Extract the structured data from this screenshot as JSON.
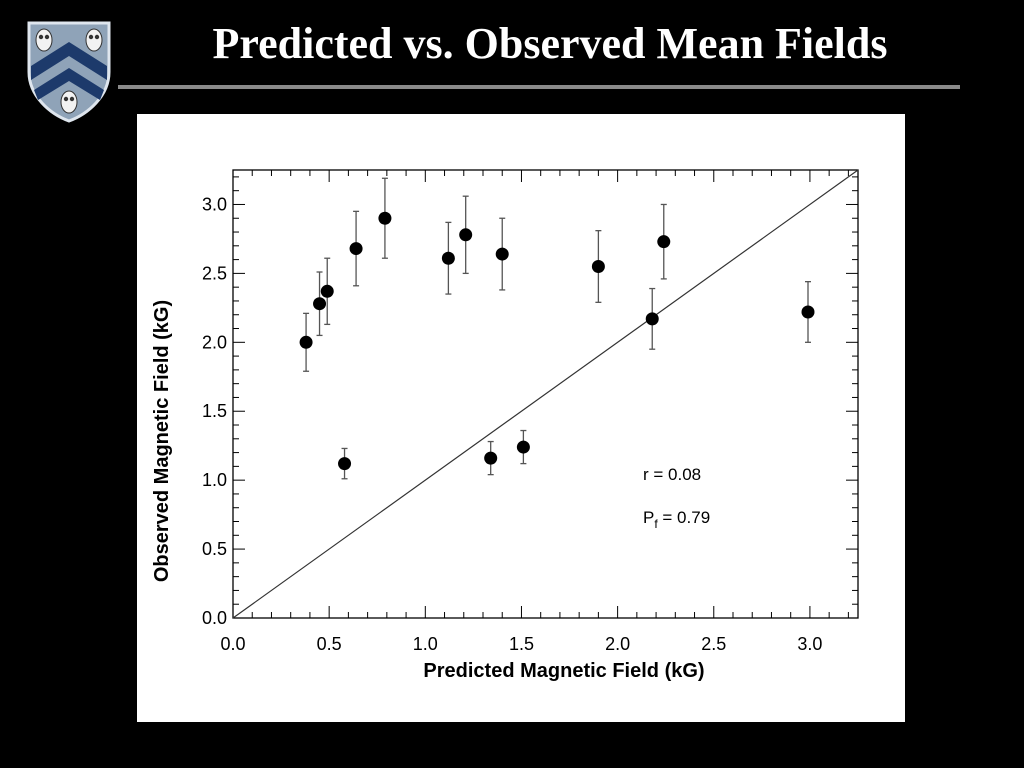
{
  "slide": {
    "title": "Predicted vs. Observed Mean Fields",
    "background": "#000000",
    "title_color": "#ffffff",
    "rule_color": "#8a8a8a"
  },
  "logo": {
    "icon": "university-shield-owls-icon",
    "shield_color": "#8fa3b8",
    "chevron_color": "#1d3a6b"
  },
  "chart_data": {
    "type": "scatter",
    "xlabel": "Predicted Magnetic Field (kG)",
    "ylabel": "Observed Magnetic Field (kG)",
    "xlim": [
      0,
      3.25
    ],
    "ylim": [
      0,
      3.25
    ],
    "xticks": [
      0,
      0.5,
      1.0,
      1.5,
      2.0,
      2.5,
      3.0
    ],
    "xtick_labels": [
      "0.0",
      "0.5",
      "1.0",
      "1.5",
      "2.0",
      "2.5",
      "3.0"
    ],
    "yticks": [
      0,
      0.5,
      1.0,
      1.5,
      2.0,
      2.5,
      3.0
    ],
    "ytick_labels": [
      "0.0",
      "0.5",
      "1.0",
      "1.5",
      "2.0",
      "2.5",
      "3.0"
    ],
    "grid": false,
    "reference_line": {
      "type": "identity",
      "from": [
        0,
        0
      ],
      "to": [
        3.25,
        3.25
      ]
    },
    "annotations": [
      {
        "text_main": "r = 0.08",
        "text_sub": ""
      },
      {
        "text_main": "P",
        "text_sub": "f",
        "text_tail": " = 0.79"
      }
    ],
    "points": [
      {
        "x": 0.38,
        "y": 2.0,
        "err": 0.21
      },
      {
        "x": 0.45,
        "y": 2.28,
        "err": 0.23
      },
      {
        "x": 0.49,
        "y": 2.37,
        "err": 0.24
      },
      {
        "x": 0.58,
        "y": 1.12,
        "err": 0.11
      },
      {
        "x": 0.64,
        "y": 2.68,
        "err": 0.27
      },
      {
        "x": 0.79,
        "y": 2.9,
        "err": 0.29
      },
      {
        "x": 1.12,
        "y": 2.61,
        "err": 0.26
      },
      {
        "x": 1.21,
        "y": 2.78,
        "err": 0.28
      },
      {
        "x": 1.34,
        "y": 1.16,
        "err": 0.12
      },
      {
        "x": 1.4,
        "y": 2.64,
        "err": 0.26
      },
      {
        "x": 1.51,
        "y": 1.24,
        "err": 0.12
      },
      {
        "x": 1.9,
        "y": 2.55,
        "err": 0.26
      },
      {
        "x": 2.18,
        "y": 2.17,
        "err": 0.22
      },
      {
        "x": 2.24,
        "y": 2.73,
        "err": 0.27
      },
      {
        "x": 2.99,
        "y": 2.22,
        "err": 0.22
      }
    ]
  }
}
